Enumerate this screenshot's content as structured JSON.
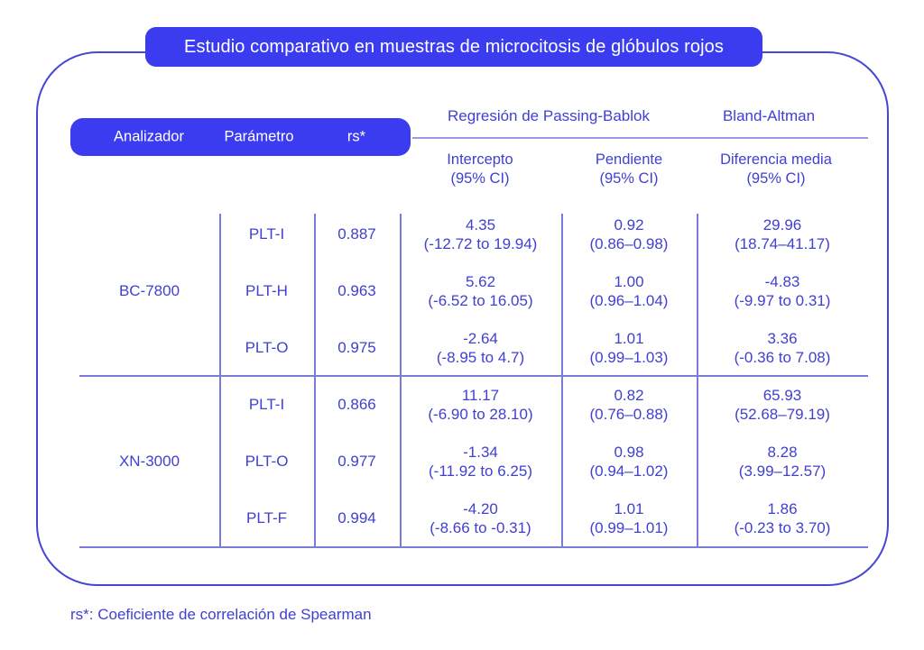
{
  "title": "Estudio comparativo en muestras de microcitosis de glóbulos rojos",
  "footer": "rs*: Coeficiente de correlación de Spearman",
  "colors": {
    "primary": "#3b3bf0",
    "text": "#4040d2",
    "frame": "#4646d6",
    "line": "#7a7ad8",
    "line_light": "#9a9ae2"
  },
  "header": {
    "analizador": "Analizador",
    "parametro": "Parámetro",
    "rs": "rs*",
    "passing_bablok": "Regresión de Passing-Bablok",
    "bland_altman": "Bland-Altman",
    "intercepto": "Intercepto",
    "pendiente": "Pendiente",
    "diferencia": "Diferencia media",
    "ci": "(95% CI)"
  },
  "table": {
    "groups": [
      {
        "analizador": "BC-7800",
        "rows": [
          {
            "parametro": "PLT-I",
            "rs": "0.887",
            "intercepto": {
              "value": "4.35",
              "ci": "(-12.72 to 19.94)"
            },
            "pendiente": {
              "value": "0.92",
              "ci": "(0.86–0.98)"
            },
            "diferencia": {
              "value": "29.96",
              "ci": "(18.74–41.17)"
            }
          },
          {
            "parametro": "PLT-H",
            "rs": "0.963",
            "intercepto": {
              "value": "5.62",
              "ci": "(-6.52 to 16.05)"
            },
            "pendiente": {
              "value": "1.00",
              "ci": "(0.96–1.04)"
            },
            "diferencia": {
              "value": "-4.83",
              "ci": "(-9.97 to 0.31)"
            }
          },
          {
            "parametro": "PLT-O",
            "rs": "0.975",
            "intercepto": {
              "value": "-2.64",
              "ci": "(-8.95 to 4.7)"
            },
            "pendiente": {
              "value": "1.01",
              "ci": "(0.99–1.03)"
            },
            "diferencia": {
              "value": "3.36",
              "ci": "(-0.36 to 7.08)"
            }
          }
        ]
      },
      {
        "analizador": "XN-3000",
        "rows": [
          {
            "parametro": "PLT-I",
            "rs": "0.866",
            "intercepto": {
              "value": "11.17",
              "ci": "(-6.90 to 28.10)"
            },
            "pendiente": {
              "value": "0.82",
              "ci": "(0.76–0.88)"
            },
            "diferencia": {
              "value": "65.93",
              "ci": "(52.68–79.19)"
            }
          },
          {
            "parametro": "PLT-O",
            "rs": "0.977",
            "intercepto": {
              "value": "-1.34",
              "ci": "(-11.92 to 6.25)"
            },
            "pendiente": {
              "value": "0.98",
              "ci": "(0.94–1.02)"
            },
            "diferencia": {
              "value": "8.28",
              "ci": "(3.99–12.57)"
            }
          },
          {
            "parametro": "PLT-F",
            "rs": "0.994",
            "intercepto": {
              "value": "-4.20",
              "ci": "(-8.66 to -0.31)"
            },
            "pendiente": {
              "value": "1.01",
              "ci": "(0.99–1.01)"
            },
            "diferencia": {
              "value": "1.86",
              "ci": "(-0.23 to 3.70)"
            }
          }
        ]
      }
    ]
  },
  "chart_data": {
    "type": "table",
    "title": "Estudio comparativo en muestras de microcitosis de glóbulos rojos",
    "columns": [
      "Analizador",
      "Parámetro",
      "rs*",
      "Intercepto (95% CI)",
      "Pendiente (95% CI)",
      "Diferencia media (95% CI)"
    ],
    "column_groups": [
      {
        "label": "Regresión de Passing-Bablok",
        "columns": [
          "Intercepto (95% CI)",
          "Pendiente (95% CI)"
        ]
      },
      {
        "label": "Bland-Altman",
        "columns": [
          "Diferencia media (95% CI)"
        ]
      }
    ],
    "rows": [
      [
        "BC-7800",
        "PLT-I",
        0.887,
        "4.35 (-12.72 to 19.94)",
        "0.92 (0.86–0.98)",
        "29.96 (18.74–41.17)"
      ],
      [
        "BC-7800",
        "PLT-H",
        0.963,
        "5.62 (-6.52 to 16.05)",
        "1.00 (0.96–1.04)",
        "-4.83 (-9.97 to 0.31)"
      ],
      [
        "BC-7800",
        "PLT-O",
        0.975,
        "-2.64 (-8.95 to 4.7)",
        "1.01 (0.99–1.03)",
        "3.36 (-0.36 to 7.08)"
      ],
      [
        "XN-3000",
        "PLT-I",
        0.866,
        "11.17 (-6.90 to 28.10)",
        "0.82 (0.76–0.88)",
        "65.93 (52.68–79.19)"
      ],
      [
        "XN-3000",
        "PLT-O",
        0.977,
        "-1.34 (-11.92 to 6.25)",
        "0.98 (0.94–1.02)",
        "8.28 (3.99–12.57)"
      ],
      [
        "XN-3000",
        "PLT-F",
        0.994,
        "-4.20 (-8.66 to -0.31)",
        "1.01 (0.99–1.01)",
        "1.86 (-0.23 to 3.70)"
      ]
    ],
    "footnote": "rs*: Coeficiente de correlación de Spearman"
  }
}
